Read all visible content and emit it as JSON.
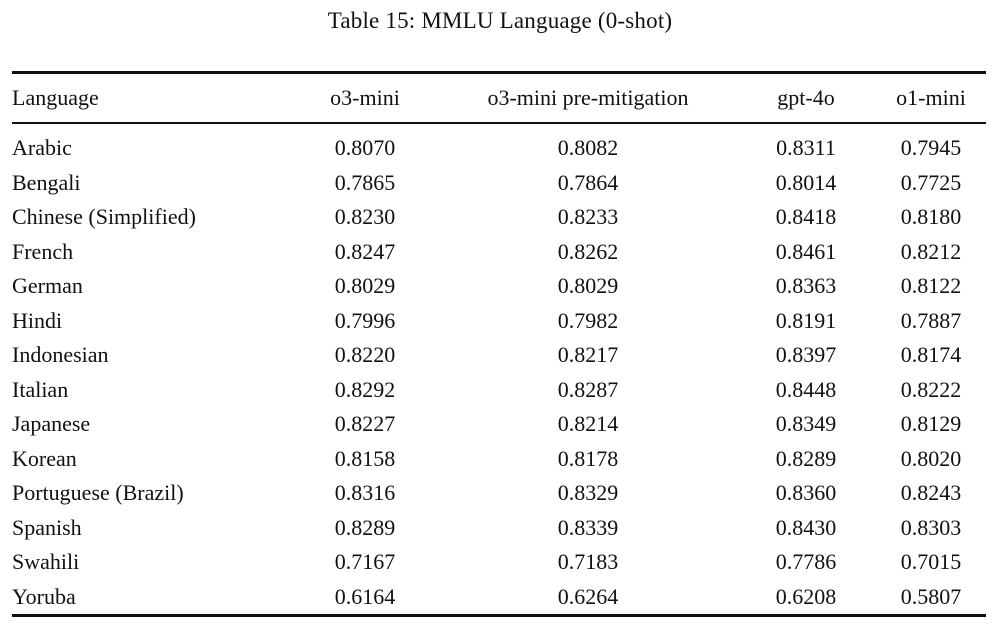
{
  "caption": "Table 15: MMLU Language (0-shot)",
  "colors": {
    "background": "#ffffff",
    "text": "#111111",
    "rule": "#111111"
  },
  "chart_data": {
    "type": "table",
    "title": "Table 15: MMLU Language (0-shot)",
    "columns": [
      "Language",
      "o3-mini",
      "o3-mini pre-mitigation",
      "gpt-4o",
      "o1-mini"
    ],
    "rows": [
      [
        "Arabic",
        "0.8070",
        "0.8082",
        "0.8311",
        "0.7945"
      ],
      [
        "Bengali",
        "0.7865",
        "0.7864",
        "0.8014",
        "0.7725"
      ],
      [
        "Chinese (Simplified)",
        "0.8230",
        "0.8233",
        "0.8418",
        "0.8180"
      ],
      [
        "French",
        "0.8247",
        "0.8262",
        "0.8461",
        "0.8212"
      ],
      [
        "German",
        "0.8029",
        "0.8029",
        "0.8363",
        "0.8122"
      ],
      [
        "Hindi",
        "0.7996",
        "0.7982",
        "0.8191",
        "0.7887"
      ],
      [
        "Indonesian",
        "0.8220",
        "0.8217",
        "0.8397",
        "0.8174"
      ],
      [
        "Italian",
        "0.8292",
        "0.8287",
        "0.8448",
        "0.8222"
      ],
      [
        "Japanese",
        "0.8227",
        "0.8214",
        "0.8349",
        "0.8129"
      ],
      [
        "Korean",
        "0.8158",
        "0.8178",
        "0.8289",
        "0.8020"
      ],
      [
        "Portuguese (Brazil)",
        "0.8316",
        "0.8329",
        "0.8360",
        "0.8243"
      ],
      [
        "Spanish",
        "0.8289",
        "0.8339",
        "0.8430",
        "0.8303"
      ],
      [
        "Swahili",
        "0.7167",
        "0.7183",
        "0.7786",
        "0.7015"
      ],
      [
        "Yoruba",
        "0.6164",
        "0.6264",
        "0.6208",
        "0.5807"
      ]
    ]
  }
}
